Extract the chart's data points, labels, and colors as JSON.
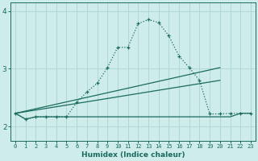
{
  "xlabel": "Humidex (Indice chaleur)",
  "bg_color": "#ceecea",
  "line_color": "#1a6b5e",
  "grid_color": "#b0d8d4",
  "xlim": [
    -0.5,
    23.5
  ],
  "ylim": [
    1.75,
    4.15
  ],
  "yticks": [
    2,
    3,
    4
  ],
  "xticks": [
    0,
    1,
    2,
    3,
    4,
    5,
    6,
    7,
    8,
    9,
    10,
    11,
    12,
    13,
    14,
    15,
    16,
    17,
    18,
    19,
    20,
    21,
    22,
    23
  ],
  "series1_x": [
    0,
    1,
    2,
    3,
    4,
    5,
    6,
    7,
    8,
    9,
    10,
    11,
    12,
    13,
    14,
    15,
    16,
    17,
    18,
    19,
    20,
    21,
    22,
    23
  ],
  "series1_y": [
    2.23,
    2.13,
    2.17,
    2.17,
    2.17,
    2.17,
    2.42,
    2.6,
    2.75,
    3.02,
    3.37,
    3.37,
    3.78,
    3.85,
    3.8,
    3.57,
    3.22,
    3.02,
    2.8,
    2.22,
    2.22,
    2.23,
    2.23,
    2.23
  ],
  "series2_x": [
    0,
    1,
    2,
    3,
    4,
    5,
    6,
    7,
    8,
    9,
    10,
    11,
    12,
    13,
    14,
    15,
    16,
    17,
    18,
    19,
    20,
    21,
    22,
    23
  ],
  "series2_y": [
    2.23,
    2.13,
    2.17,
    2.17,
    2.17,
    2.17,
    2.17,
    2.17,
    2.17,
    2.17,
    2.17,
    2.17,
    2.17,
    2.17,
    2.17,
    2.17,
    2.17,
    2.17,
    2.17,
    2.17,
    2.17,
    2.17,
    2.23,
    2.23
  ],
  "series3_x": [
    0,
    20
  ],
  "series3_y": [
    2.23,
    3.02
  ],
  "series4_x": [
    0,
    20
  ],
  "series4_y": [
    2.23,
    2.8
  ]
}
